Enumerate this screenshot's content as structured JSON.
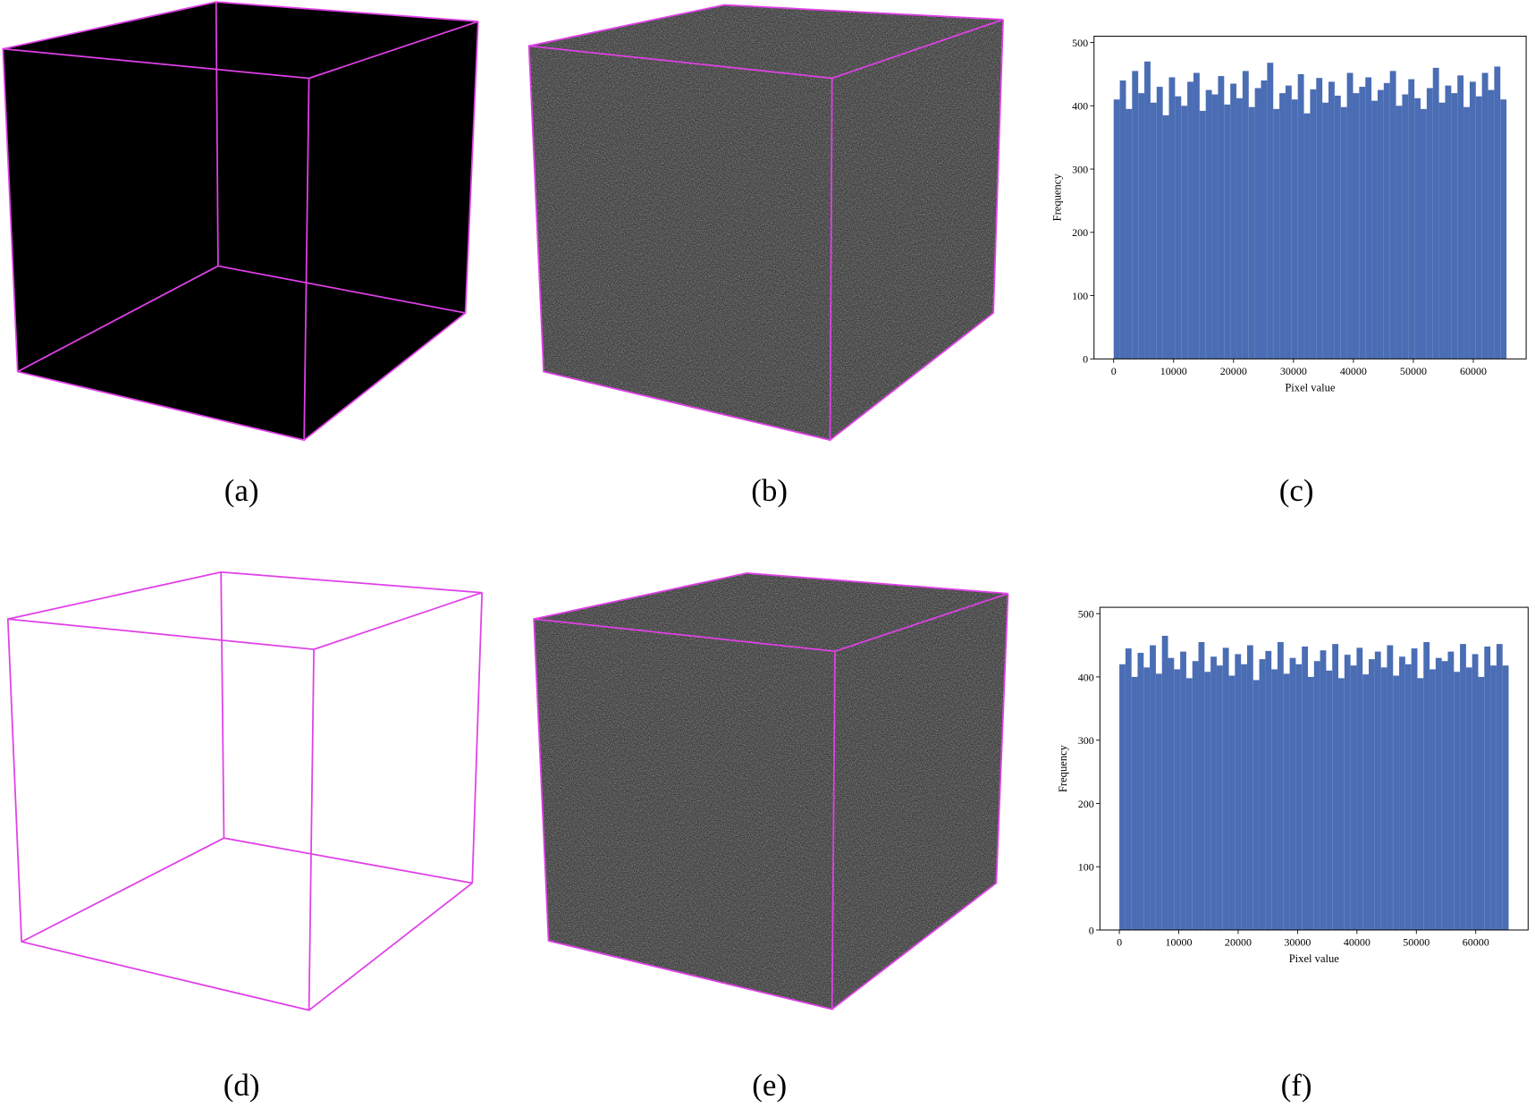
{
  "panels": [
    "(a)",
    "(b)",
    "(c)",
    "(d)",
    "(e)",
    "(f)"
  ],
  "chart_data": [
    {
      "type": "histogram",
      "xlabel": "Pixel value",
      "ylabel": "Frequency",
      "color": "#4a6db4",
      "xlim": [
        -3277,
        68813
      ],
      "ylim": [
        0,
        510
      ],
      "xticks": [
        0,
        10000,
        20000,
        30000,
        40000,
        50000,
        60000
      ],
      "yticks": [
        0,
        100,
        200,
        300,
        400,
        500
      ],
      "bins": [
        0,
        1024,
        2048,
        3072,
        4096,
        5120,
        6144,
        7168,
        8192,
        9216,
        10240,
        11264,
        12288,
        13312,
        14336,
        15360,
        16384,
        17408,
        18432,
        19456,
        20480,
        21504,
        22528,
        23552,
        24576,
        25600,
        26624,
        27648,
        28672,
        29696,
        30720,
        31744,
        32768,
        33792,
        34816,
        35840,
        36864,
        37888,
        38912,
        39936,
        40960,
        41984,
        43008,
        44032,
        45056,
        46080,
        47104,
        48128,
        49152,
        50176,
        51200,
        52224,
        53248,
        54272,
        55296,
        56320,
        57344,
        58368,
        59392,
        60416,
        61440,
        62464,
        63488,
        64512,
        65536
      ],
      "values": [
        410,
        440,
        395,
        455,
        420,
        470,
        405,
        430,
        385,
        445,
        415,
        400,
        438,
        452,
        392,
        425,
        418,
        447,
        402,
        435,
        412,
        455,
        398,
        428,
        440,
        468,
        395,
        420,
        432,
        410,
        450,
        388,
        426,
        444,
        405,
        438,
        416,
        398,
        452,
        420,
        430,
        445,
        408,
        425,
        436,
        455,
        400,
        418,
        442,
        412,
        395,
        428,
        460,
        405,
        432,
        420,
        448,
        398,
        438,
        415,
        452,
        425,
        462,
        410
      ]
    },
    {
      "type": "histogram",
      "xlabel": "Pixel value",
      "ylabel": "Frequency",
      "color": "#4a6db4",
      "xlim": [
        -3277,
        68813
      ],
      "ylim": [
        0,
        510
      ],
      "xticks": [
        0,
        10000,
        20000,
        30000,
        40000,
        50000,
        60000
      ],
      "yticks": [
        0,
        100,
        200,
        300,
        400,
        500
      ],
      "bins": [
        0,
        1024,
        2048,
        3072,
        4096,
        5120,
        6144,
        7168,
        8192,
        9216,
        10240,
        11264,
        12288,
        13312,
        14336,
        15360,
        16384,
        17408,
        18432,
        19456,
        20480,
        21504,
        22528,
        23552,
        24576,
        25600,
        26624,
        27648,
        28672,
        29696,
        30720,
        31744,
        32768,
        33792,
        34816,
        35840,
        36864,
        37888,
        38912,
        39936,
        40960,
        41984,
        43008,
        44032,
        45056,
        46080,
        47104,
        48128,
        49152,
        50176,
        51200,
        52224,
        53248,
        54272,
        55296,
        56320,
        57344,
        58368,
        59392,
        60416,
        61440,
        62464,
        63488,
        64512,
        65536
      ],
      "values": [
        420,
        445,
        400,
        438,
        415,
        450,
        405,
        465,
        430,
        412,
        440,
        398,
        425,
        455,
        408,
        432,
        418,
        446,
        402,
        436,
        420,
        450,
        395,
        428,
        441,
        412,
        455,
        405,
        430,
        420,
        448,
        400,
        425,
        442,
        410,
        452,
        398,
        435,
        418,
        446,
        404,
        428,
        440,
        415,
        450,
        402,
        432,
        420,
        445,
        398,
        455,
        412,
        430,
        425,
        440,
        408,
        452,
        415,
        436,
        400,
        448,
        418,
        452,
        418
      ]
    }
  ]
}
